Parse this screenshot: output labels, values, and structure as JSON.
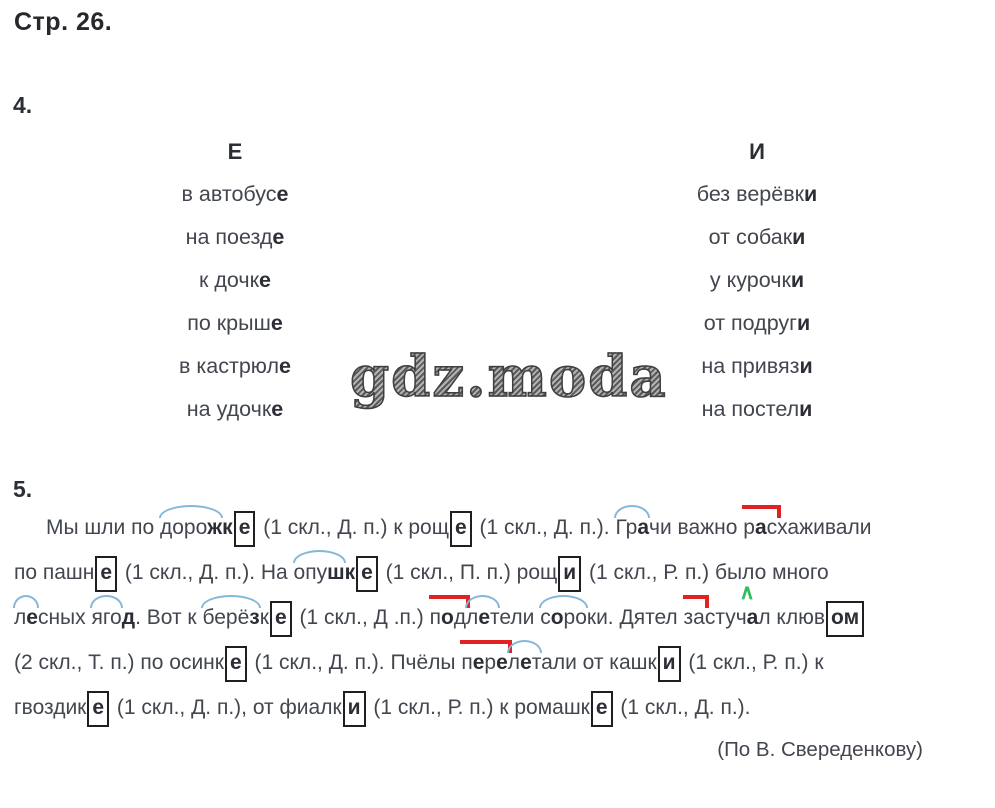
{
  "page": {
    "title": "Стр. 26."
  },
  "watermark": "gdz.moda",
  "colors": {
    "text": "#42464e",
    "box": "#1f1f1f",
    "arc": "#85b8d8",
    "prefix": "#e02222",
    "caret": "#2ebd5b"
  },
  "exercise4": {
    "number": "4.",
    "columns": [
      {
        "header": "Е",
        "items": [
          {
            "pre": "в автобус",
            "end": "е"
          },
          {
            "pre": "на поезд",
            "end": "е"
          },
          {
            "pre": "к дочк",
            "end": "е"
          },
          {
            "pre": "по крыш",
            "end": "е"
          },
          {
            "pre": "в кастрюл",
            "end": "е"
          },
          {
            "pre": "на удочк",
            "end": "е"
          }
        ]
      },
      {
        "header": "И",
        "items": [
          {
            "pre": "без верёвк",
            "end": "и"
          },
          {
            "pre": "от собак",
            "end": "и"
          },
          {
            "pre": "у курочк",
            "end": "и"
          },
          {
            "pre": "от подруг",
            "end": "и"
          },
          {
            "pre": "на привяз",
            "end": "и"
          },
          {
            "pre": "на постел",
            "end": "и"
          }
        ]
      }
    ]
  },
  "exercise5": {
    "number": "5.",
    "attribution": "(По В. Свереденкову)",
    "lines": [
      {
        "indent": true,
        "tokens": [
          {
            "type": "t",
            "text": "Мы шли по "
          },
          {
            "type": "arc",
            "parts": [
              {
                "text": "доро"
              },
              {
                "text": "ж",
                "b": true
              }
            ]
          },
          {
            "type": "b",
            "text": "к"
          },
          {
            "type": "box",
            "text": "е"
          },
          {
            "type": "t",
            "text": " (1 скл., Д. п.) к рощ"
          },
          {
            "type": "box",
            "text": "е"
          },
          {
            "type": "t",
            "text": " (1 скл., Д. п.). "
          },
          {
            "type": "arc",
            "parts": [
              {
                "text": "Гр"
              },
              {
                "text": "а",
                "b": true
              }
            ]
          },
          {
            "type": "t",
            "text": "чи важно "
          },
          {
            "type": "prefix",
            "parts": [
              {
                "text": "р"
              },
              {
                "text": "а",
                "b": true
              },
              {
                "text": "с"
              }
            ]
          },
          {
            "type": "t",
            "text": "хаживали"
          }
        ]
      },
      {
        "indent": false,
        "tokens": [
          {
            "type": "t",
            "text": "по пашн"
          },
          {
            "type": "box",
            "text": "е"
          },
          {
            "type": "t",
            "text": " (1 скл., Д. п.). На "
          },
          {
            "type": "arc",
            "parts": [
              {
                "text": "опу"
              },
              {
                "text": "ш",
                "b": true
              }
            ]
          },
          {
            "type": "b",
            "text": "к"
          },
          {
            "type": "box",
            "text": "е"
          },
          {
            "type": "t",
            "text": " (1 скл., П. п.) рощ"
          },
          {
            "type": "box",
            "text": "и"
          },
          {
            "type": "t",
            "text": " (1 скл., Р. п.) было много"
          }
        ]
      },
      {
        "indent": false,
        "tokens": [
          {
            "type": "arc",
            "parts": [
              {
                "text": "л"
              },
              {
                "text": "е",
                "b": true
              }
            ]
          },
          {
            "type": "t",
            "text": "сных "
          },
          {
            "type": "arc",
            "parts": [
              {
                "text": "яго"
              }
            ]
          },
          {
            "type": "b",
            "text": "д"
          },
          {
            "type": "t",
            "text": ". Вот к "
          },
          {
            "type": "arc",
            "parts": [
              {
                "text": "берё"
              },
              {
                "text": "з",
                "b": true
              }
            ]
          },
          {
            "type": "t",
            "text": "к"
          },
          {
            "type": "box",
            "text": "е"
          },
          {
            "type": "t",
            "text": " (1 скл., Д .п.) "
          },
          {
            "type": "prefix",
            "parts": [
              {
                "text": "п"
              },
              {
                "text": "о",
                "b": true
              },
              {
                "text": "д"
              }
            ]
          },
          {
            "type": "arc",
            "parts": [
              {
                "text": "л"
              },
              {
                "text": "е",
                "b": true
              },
              {
                "text": "т"
              }
            ]
          },
          {
            "type": "t",
            "text": "ели "
          },
          {
            "type": "arc",
            "parts": [
              {
                "text": "с"
              },
              {
                "text": "о",
                "b": true
              },
              {
                "text": "ро"
              }
            ]
          },
          {
            "type": "t",
            "text": "ки. Дятел "
          },
          {
            "type": "prefix",
            "parts": [
              {
                "text": "за"
              }
            ]
          },
          {
            "type": "t",
            "text": "сту"
          },
          {
            "type": "caret",
            "parts": [
              {
                "text": "ч"
              },
              {
                "text": "а",
                "b": true
              }
            ]
          },
          {
            "type": "t",
            "text": "л клюв"
          },
          {
            "type": "box",
            "text": "ом"
          }
        ]
      },
      {
        "indent": false,
        "tokens": [
          {
            "type": "t",
            "text": "(2 скл., Т. п.) по осинк"
          },
          {
            "type": "box",
            "text": "е"
          },
          {
            "type": "t",
            "text": " (1 скл., Д. п.). Пчёлы "
          },
          {
            "type": "prefix",
            "parts": [
              {
                "text": "п"
              },
              {
                "text": "е",
                "b": true
              },
              {
                "text": "р"
              },
              {
                "text": "е",
                "b": true
              }
            ]
          },
          {
            "type": "arc",
            "parts": [
              {
                "text": "л"
              },
              {
                "text": "е",
                "b": true
              },
              {
                "text": "т"
              }
            ]
          },
          {
            "type": "t",
            "text": "али от кашк"
          },
          {
            "type": "box",
            "text": "и"
          },
          {
            "type": "t",
            "text": " (1 скл., Р. п.) к"
          }
        ]
      },
      {
        "indent": false,
        "tokens": [
          {
            "type": "t",
            "text": "гвоздик"
          },
          {
            "type": "box",
            "text": "е"
          },
          {
            "type": "t",
            "text": " (1 скл., Д. п.), от фиалк"
          },
          {
            "type": "box",
            "text": "и"
          },
          {
            "type": "t",
            "text": " (1 скл., Р. п.) к ромашк"
          },
          {
            "type": "box",
            "text": "е"
          },
          {
            "type": "t",
            "text": " (1 скл., Д. п.)."
          }
        ]
      }
    ]
  }
}
